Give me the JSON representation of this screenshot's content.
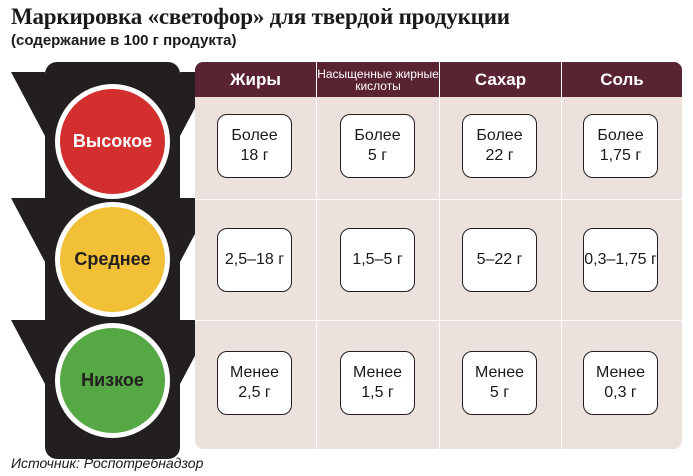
{
  "title": "Маркировка «светофор» для твердой продукции",
  "subtitle": "(содержание в 100 г продукта)",
  "levels": [
    {
      "label": "Высокое",
      "color": "#d32f2f",
      "text_color": "#ffffff"
    },
    {
      "label": "Среднее",
      "color": "#f2c036",
      "text_color": "#231f20"
    },
    {
      "label": "Низкое",
      "color": "#56a845",
      "text_color": "#231f20"
    }
  ],
  "columns": [
    "Жиры",
    "Насыщенные жирные кислоты",
    "Сахар",
    "Соль"
  ],
  "rows": [
    [
      [
        "Более",
        "18 г"
      ],
      [
        "Более",
        "5 г"
      ],
      [
        "Более",
        "22 г"
      ],
      [
        "Более",
        "1,75 г"
      ]
    ],
    [
      [
        "2,5–18 г"
      ],
      [
        "1,5–5 г"
      ],
      [
        "5–22 г"
      ],
      [
        "0,3–1,75 г"
      ]
    ],
    [
      [
        "Менее",
        "2,5 г"
      ],
      [
        "Менее",
        "1,5 г"
      ],
      [
        "Менее",
        "5 г"
      ],
      [
        "Менее",
        "0,3 г"
      ]
    ]
  ],
  "source": "Источник: Роспотребнадзор",
  "colors": {
    "header": "#5a2331",
    "table_bg": "#ede1de",
    "light_body": "#231f20"
  }
}
